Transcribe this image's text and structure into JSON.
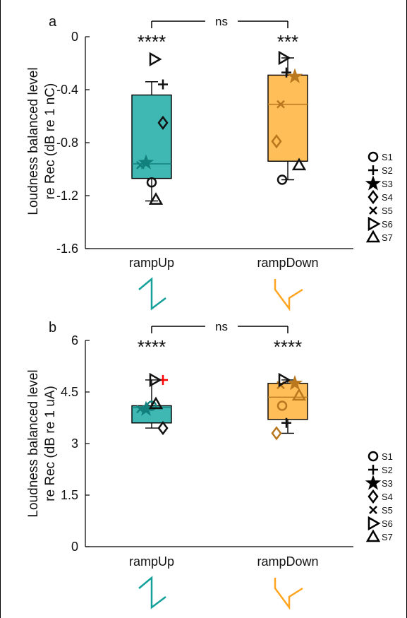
{
  "colors": {
    "rampUp": "#3fb8b4",
    "rampUp_dark": "#12807c",
    "rampDown": "#ffbe58",
    "rampDown_dark": "#b9771e",
    "marker": "#111111",
    "red_marker": "#ff0000"
  },
  "legend": {
    "labels": [
      "S1",
      "S2",
      "S3",
      "S4",
      "S5",
      "S6",
      "S7"
    ]
  },
  "chart_data": [
    {
      "panel_label": "a",
      "type": "box",
      "ylabel_line1": "Loudness balanced level",
      "ylabel_line2": "re Rec (dB re 1 nC)",
      "ylim": [
        -1.6,
        0
      ],
      "yticks": [
        "0",
        "-0.4",
        "-0.8",
        "-1.2",
        "-1.6"
      ],
      "ytick_values": [
        0,
        -0.4,
        -0.8,
        -1.2,
        -1.6
      ],
      "categories": [
        "rampUp",
        "rampDown"
      ],
      "boxes": [
        {
          "q1": -1.07,
          "median": -0.96,
          "q3": -0.44,
          "mean": -0.95,
          "whisker_high": -0.34,
          "whisker_low": -1.24
        },
        {
          "q1": -0.94,
          "median": -0.51,
          "q3": -0.29,
          "mean": -0.51,
          "whisker_high": -0.16,
          "whisker_low": -1.08
        }
      ],
      "subjects": [
        {
          "name": "S1",
          "values": [
            -1.1,
            -1.08
          ]
        },
        {
          "name": "S2",
          "values": [
            -0.36,
            -0.27
          ]
        },
        {
          "name": "S3",
          "values": [
            -0.95,
            -0.3
          ]
        },
        {
          "name": "S4",
          "values": [
            -0.65,
            -0.79
          ]
        },
        {
          "name": "S5",
          "values": [
            -0.97,
            -0.51
          ]
        },
        {
          "name": "S6",
          "values": [
            -0.17,
            -0.16
          ]
        },
        {
          "name": "S7",
          "values": [
            -1.23,
            -0.97
          ]
        }
      ],
      "significance": [
        "****",
        "***"
      ],
      "comparison_label": "ns"
    },
    {
      "panel_label": "b",
      "type": "box",
      "ylabel_line1": "Loudness balanced level",
      "ylabel_line2": "re Rec (dB re 1 uA)",
      "ylim": [
        0,
        6
      ],
      "yticks": [
        "6",
        "4.5",
        "3",
        "1.5",
        "0"
      ],
      "ytick_values": [
        6,
        4.5,
        3,
        1.5,
        0
      ],
      "categories": [
        "rampUp",
        "rampDown"
      ],
      "boxes": [
        {
          "q1": 3.6,
          "median": 4.05,
          "q3": 4.1,
          "mean": 4.0,
          "whisker_high": 4.85,
          "whisker_low": 3.45
        },
        {
          "q1": 3.7,
          "median": 4.35,
          "q3": 4.75,
          "mean": 4.35,
          "whisker_high": 4.85,
          "whisker_low": 3.3
        }
      ],
      "subjects": [
        {
          "name": "S1",
          "values": [
            4.1,
            4.1
          ]
        },
        {
          "name": "S2",
          "values": [
            4.85,
            3.6
          ]
        },
        {
          "name": "S3",
          "values": [
            4.0,
            4.75
          ]
        },
        {
          "name": "S4",
          "values": [
            3.45,
            3.3
          ]
        },
        {
          "name": "S5",
          "values": [
            4.0,
            4.7
          ]
        },
        {
          "name": "S6",
          "values": [
            4.85,
            4.85
          ]
        },
        {
          "name": "S7",
          "values": [
            4.15,
            4.4
          ]
        }
      ],
      "significance": [
        "****",
        "****"
      ],
      "comparison_label": "ns"
    }
  ]
}
